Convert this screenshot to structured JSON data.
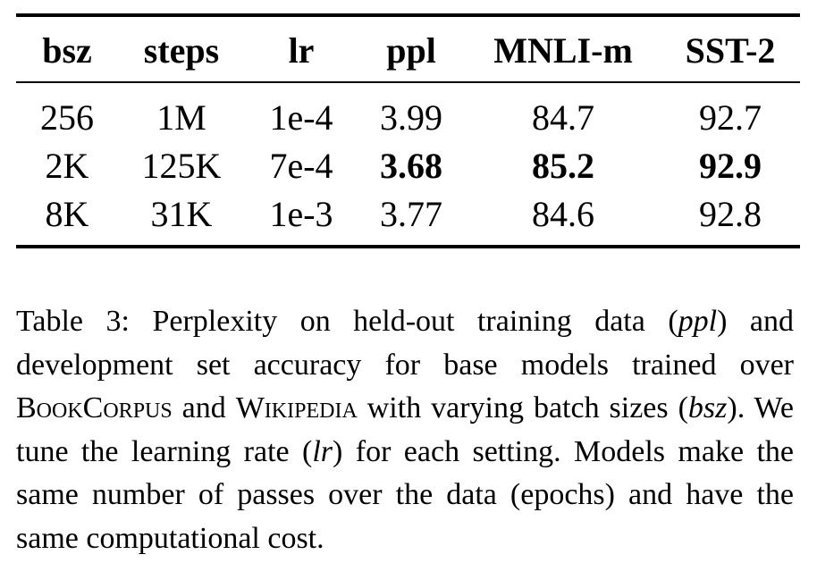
{
  "table": {
    "headers": [
      "bsz",
      "steps",
      "lr",
      "ppl",
      "MNLI-m",
      "SST-2"
    ],
    "rows": [
      [
        "256",
        "1M",
        "1e-4",
        "3.99",
        "84.7",
        "92.7"
      ],
      [
        "2K",
        "125K",
        "7e-4",
        "3.68",
        "85.2",
        "92.9"
      ],
      [
        "8K",
        "31K",
        "1e-3",
        "3.77",
        "84.6",
        "92.8"
      ]
    ],
    "bold_cells": [
      [
        1,
        3
      ],
      [
        1,
        4
      ],
      [
        1,
        5
      ]
    ]
  },
  "caption": {
    "label": "Table 3:",
    "t1": " Perplexity on held-out training data (",
    "i1": "ppl",
    "t2": ") and development set accuracy for base models trained over ",
    "sc1": "BookCorpus",
    "t3": " and ",
    "sc2": "Wikipedia",
    "t4": " with varying batch sizes (",
    "i2": "bsz",
    "t5": "). We tune the learning rate (",
    "i3": "lr",
    "t6": ") for each set­ting. Models make the same number of passes over the data (epochs) and have the same computational cost."
  }
}
